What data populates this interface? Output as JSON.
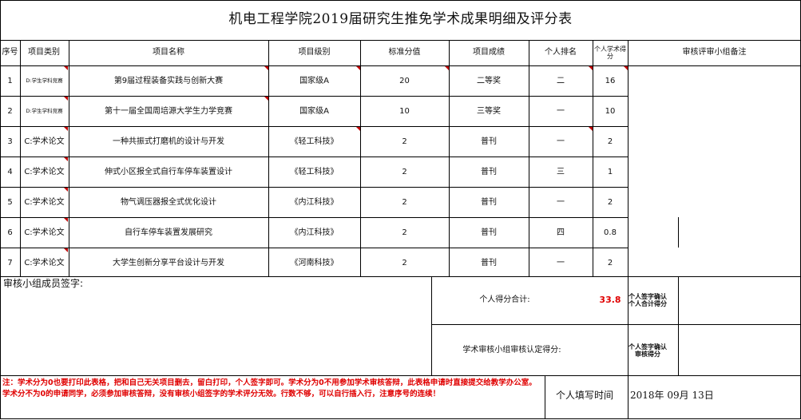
{
  "title": "机电工程学院2019届研究生推免学术成果明细及评分表",
  "headers": {
    "no": "序号",
    "category": "项目类别",
    "name": "项目名称",
    "level": "项目级别",
    "standard": "标准分值",
    "result": "项目成绩",
    "rank": "个人排名",
    "personal_score": "个人学术得分",
    "review": "审核评审小组备注"
  },
  "rows": [
    {
      "no": "1",
      "category": "D:学生学科竞赛",
      "name": "第9届过程装备实践与创新大赛",
      "level": "国家级A",
      "standard": "20",
      "result": "二等奖",
      "rank": "二",
      "score": "16"
    },
    {
      "no": "2",
      "category": "D:学生学科竞赛",
      "name": "第十一届全国周培源大学生力学竞赛",
      "level": "国家级A",
      "standard": "10",
      "result": "三等奖",
      "rank": "一",
      "score": "10"
    },
    {
      "no": "3",
      "category": "C:学术论文",
      "name": "一种共振式打磨机的设计与开发",
      "level": "《轻工科技》",
      "standard": "2",
      "result": "普刊",
      "rank": "一",
      "score": "2"
    },
    {
      "no": "4",
      "category": "C:学术论文",
      "name": "伸式小区报全式自行车停车装置设计",
      "level": "《轻工科技》",
      "standard": "2",
      "result": "普刊",
      "rank": "三",
      "score": "1"
    },
    {
      "no": "5",
      "category": "C:学术论文",
      "name": "物气调压器报全式优化设计",
      "level": "《内江科技》",
      "standard": "2",
      "result": "普刊",
      "rank": "一",
      "score": "2"
    },
    {
      "no": "6",
      "category": "C:学术论文",
      "name": "自行车停车装置发展研究",
      "level": "《内江科技》",
      "standard": "2",
      "result": "普刊",
      "rank": "四",
      "score": "0.8"
    },
    {
      "no": "7",
      "category": "C:学术论文",
      "name": "大学生创新分享平台设计与开发",
      "level": "《河南科技》",
      "standard": "2",
      "result": "普刊",
      "rank": "一",
      "score": "2"
    }
  ],
  "review_signature_label": "审核小组成员签字:",
  "total_label": "个人得分合计:",
  "total_value": "33.8",
  "confirm_total_label": "个人签字确认个人合计得分",
  "committee_label": "学术审核小组审核认定得分:",
  "confirm_review_label": "个人签字确认审核得分",
  "note": "注：学术分为0也要打印此表格，把和自己无关项目删去，留白打印，个人签字即可。学术分为0不用参加学术审核答辩，此表格申请时直接提交给教学办公室。学术分不为0的申请同学，必须参加审核答辩，没有审核小组签字的学术评分无效。行数不够，可以自行插入行，注意序号的连续！",
  "fill_time_label": "个人填写时间",
  "fill_time_value": "2018年  09月  13日"
}
